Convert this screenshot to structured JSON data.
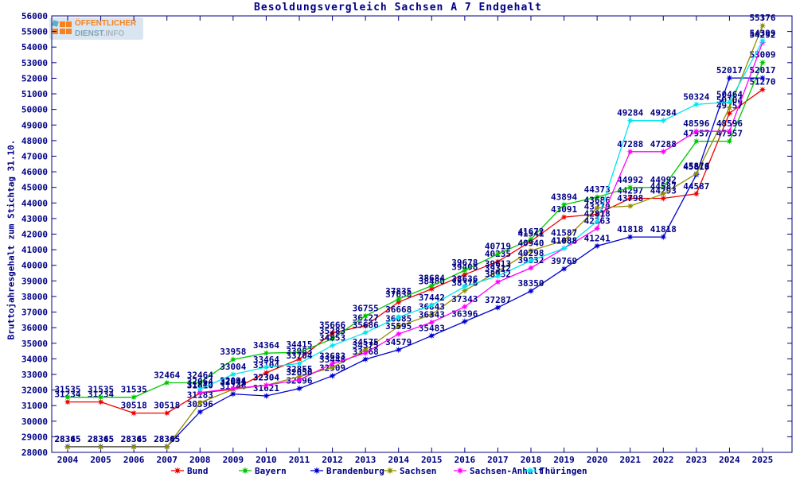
{
  "title": "Besoldungsvergleich Sachsen A 7 Endgehalt",
  "logo": {
    "line1": "ÖFFENTLICHER",
    "line2_a": "DIENST",
    "line2_b": ".INFO"
  },
  "y_axis": {
    "label": "Bruttojahresgehalt zum Stichtag 31.10.",
    "min": 28000,
    "max": 56000,
    "step": 1000
  },
  "x_axis": {
    "years": [
      2004,
      2005,
      2006,
      2007,
      2008,
      2009,
      2010,
      2011,
      2012,
      2013,
      2014,
      2015,
      2016,
      2017,
      2018,
      2019,
      2020,
      2021,
      2022,
      2023,
      2024,
      2025
    ]
  },
  "chart_data": {
    "type": "line",
    "title": "Besoldungsvergleich Sachsen A 7 Endgehalt",
    "xlabel": "",
    "ylabel": "Bruttojahresgehalt zum Stichtag 31.10.",
    "ylim": [
      28000,
      56000
    ],
    "grid": false,
    "legend_position": "bottom",
    "point_labels": true,
    "x": [
      2004,
      2005,
      2006,
      2007,
      2008,
      2009,
      2010,
      2011,
      2012,
      2013,
      2014,
      2015,
      2016,
      2017,
      2018,
      2019,
      2020,
      2021,
      2022,
      2023,
      2024,
      2025
    ],
    "series": [
      {
        "name": "Bund",
        "color": "#ee0000",
        "values": [
          31234,
          31234,
          30518,
          30518,
          31810,
          32044,
          33104,
          33983,
          35666,
          36127,
          37638,
          38480,
          39408,
          40235,
          41541,
          43091,
          43279,
          44297,
          44293,
          44587,
          49757,
          51270
        ]
      },
      {
        "name": "Bayern",
        "color": "#00c800",
        "values": [
          31535,
          31535,
          31535,
          32464,
          32464,
          33958,
          34364,
          34415,
          35283,
          36755,
          37835,
          38684,
          39678,
          40719,
          41672,
          43894,
          44373,
          44992,
          44992,
          47957,
          47957,
          53009
        ]
      },
      {
        "name": "Brandenburg",
        "color": "#0000d0",
        "values": [
          28365,
          28365,
          28365,
          28365,
          30596,
          31746,
          31621,
          32096,
          32909,
          33968,
          34579,
          35483,
          36396,
          37287,
          38350,
          39769,
          41241,
          41818,
          41818,
          45818,
          52017,
          52017
        ]
      },
      {
        "name": "Sachsen",
        "color": "#8f8f00",
        "values": [
          28345,
          28345,
          28345,
          28345,
          31183,
          32041,
          32304,
          32855,
          33448,
          34575,
          36085,
          36843,
          38376,
          39613,
          40940,
          41587,
          43686,
          43798,
          44587,
          45876,
          50104,
          55376
        ]
      },
      {
        "name": "Sachsen-Anhalt",
        "color": "#ff00ff",
        "values": [
          null,
          null,
          null,
          null,
          31840,
          32094,
          32304,
          32650,
          33683,
          34375,
          35595,
          36343,
          37343,
          38932,
          39832,
          41088,
          42363,
          47288,
          47288,
          48596,
          48596,
          54292
        ]
      },
      {
        "name": "Thüringen",
        "color": "#00e5ee",
        "values": [
          null,
          null,
          null,
          null,
          32064,
          33004,
          33464,
          33704,
          34853,
          35686,
          36668,
          37442,
          38636,
          39312,
          40298,
          41088,
          42818,
          49284,
          49284,
          50324,
          50464,
          54399
        ]
      }
    ]
  },
  "colors": {
    "axis": "#000084",
    "text": "#000084",
    "background": "#ffffff"
  }
}
